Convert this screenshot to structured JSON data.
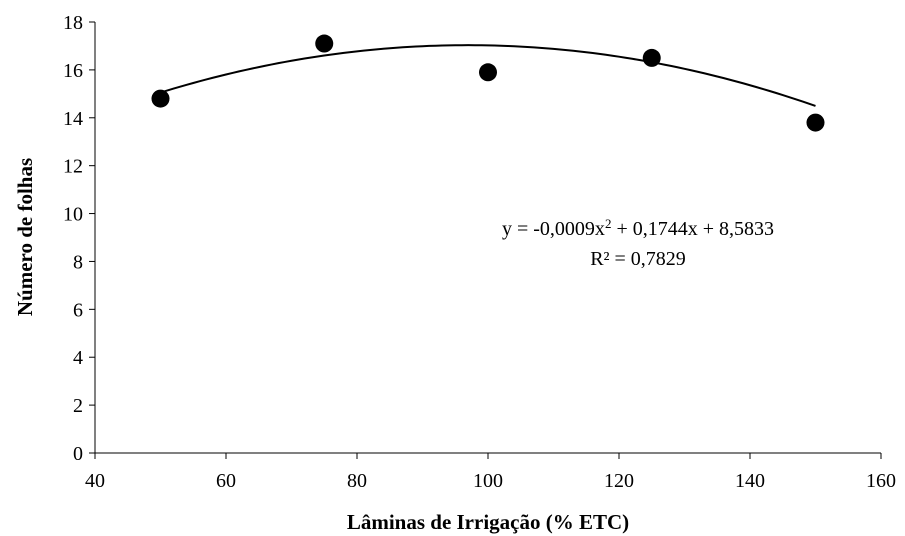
{
  "chart_data": {
    "type": "scatter",
    "xlabel": "Lâminas de Irrigação (% ETC)",
    "ylabel": "Número de folhas",
    "xlim": [
      40,
      160
    ],
    "ylim": [
      0,
      18
    ],
    "xticks": [
      40,
      60,
      80,
      100,
      120,
      140,
      160
    ],
    "yticks": [
      0,
      2,
      4,
      6,
      8,
      10,
      12,
      14,
      16,
      18
    ],
    "x_tick_labels": [
      "40",
      "60",
      "80",
      "100",
      "120",
      "140",
      "160"
    ],
    "y_tick_labels": [
      "0",
      "2",
      "4",
      "6",
      "8",
      "10",
      "12",
      "14",
      "16",
      "18"
    ],
    "grid": false,
    "legend": "none",
    "series": [
      {
        "x": [
          50,
          75,
          100,
          125,
          150
        ],
        "y": [
          14.8,
          17.1,
          15.9,
          16.5,
          13.8
        ],
        "color": "#000000",
        "marker": "circle"
      }
    ],
    "trendline": {
      "type": "polynomial",
      "coefficients": {
        "a": -0.0009,
        "b": 0.1744,
        "c": 8.5833
      },
      "x_range": [
        50,
        150
      ],
      "color": "#000000"
    },
    "annotation": {
      "equation_prefix": "y = -0,0009x",
      "equation_sup": "2",
      "equation_suffix": " + 0,1744x + 8,5833",
      "r2": "R² = 0,7829"
    }
  }
}
